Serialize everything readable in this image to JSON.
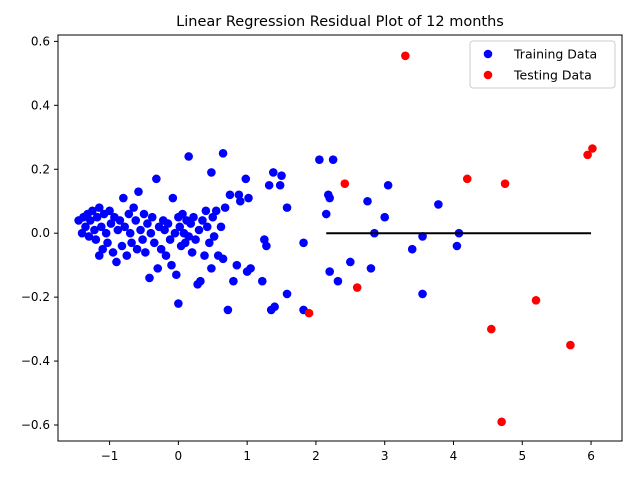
{
  "chart_data": {
    "type": "scatter",
    "title": "Linear Regression Residual Plot of 12 months",
    "xlabel": "",
    "ylabel": "",
    "xlim": [
      -1.75,
      6.45
    ],
    "ylim": [
      -0.65,
      0.62
    ],
    "x_ticks": [
      -1,
      0,
      1,
      2,
      3,
      4,
      5,
      6
    ],
    "y_ticks": [
      -0.6,
      -0.4,
      -0.2,
      0.0,
      0.2,
      0.4,
      0.6
    ],
    "x_tick_labels": [
      "−1",
      "0",
      "1",
      "2",
      "3",
      "4",
      "5",
      "6"
    ],
    "y_tick_labels": [
      "−0.6",
      "−0.4",
      "−0.2",
      "0.0",
      "0.2",
      "0.4",
      "0.6"
    ],
    "grid": false,
    "legend_position": "top-right",
    "hline": {
      "y": 0,
      "xmin": 2.15,
      "xmax": 6.0,
      "color": "#000000"
    },
    "series": [
      {
        "name": "Training Data",
        "color": "#0000ff",
        "points": [
          [
            -1.45,
            0.04
          ],
          [
            -1.4,
            0.0
          ],
          [
            -1.38,
            0.05
          ],
          [
            -1.35,
            0.02
          ],
          [
            -1.32,
            0.06
          ],
          [
            -1.3,
            -0.01
          ],
          [
            -1.28,
            0.04
          ],
          [
            -1.25,
            0.07
          ],
          [
            -1.22,
            0.01
          ],
          [
            -1.2,
            -0.02
          ],
          [
            -1.18,
            0.05
          ],
          [
            -1.15,
            0.08
          ],
          [
            -1.15,
            -0.07
          ],
          [
            -1.12,
            0.02
          ],
          [
            -1.1,
            -0.05
          ],
          [
            -1.08,
            0.06
          ],
          [
            -1.05,
            0.0
          ],
          [
            -1.03,
            -0.03
          ],
          [
            -1.0,
            0.07
          ],
          [
            -0.98,
            0.03
          ],
          [
            -0.95,
            -0.06
          ],
          [
            -0.93,
            0.05
          ],
          [
            -0.9,
            -0.09
          ],
          [
            -0.88,
            0.01
          ],
          [
            -0.85,
            0.04
          ],
          [
            -0.82,
            -0.04
          ],
          [
            -0.8,
            0.11
          ],
          [
            -0.78,
            0.02
          ],
          [
            -0.75,
            -0.07
          ],
          [
            -0.72,
            0.06
          ],
          [
            -0.7,
            0.0
          ],
          [
            -0.68,
            -0.03
          ],
          [
            -0.65,
            0.08
          ],
          [
            -0.62,
            0.04
          ],
          [
            -0.6,
            -0.05
          ],
          [
            -0.58,
            0.13
          ],
          [
            -0.55,
            0.01
          ],
          [
            -0.52,
            -0.02
          ],
          [
            -0.5,
            0.06
          ],
          [
            -0.48,
            -0.06
          ],
          [
            -0.45,
            0.03
          ],
          [
            -0.42,
            -0.14
          ],
          [
            -0.4,
            0.0
          ],
          [
            -0.38,
            0.05
          ],
          [
            -0.35,
            -0.03
          ],
          [
            -0.32,
            0.17
          ],
          [
            -0.3,
            -0.11
          ],
          [
            -0.28,
            0.02
          ],
          [
            -0.25,
            -0.05
          ],
          [
            -0.22,
            0.04
          ],
          [
            -0.2,
            0.01
          ],
          [
            -0.18,
            -0.07
          ],
          [
            -0.15,
            0.03
          ],
          [
            -0.12,
            -0.02
          ],
          [
            -0.1,
            -0.1
          ],
          [
            -0.08,
            0.11
          ],
          [
            -0.05,
            0.0
          ],
          [
            -0.03,
            -0.13
          ],
          [
            0.0,
            -0.22
          ],
          [
            0.0,
            0.05
          ],
          [
            0.02,
            0.02
          ],
          [
            0.04,
            -0.04
          ],
          [
            0.06,
            0.06
          ],
          [
            0.08,
            0.0
          ],
          [
            0.1,
            -0.03
          ],
          [
            0.12,
            0.04
          ],
          [
            0.15,
            0.24
          ],
          [
            0.15,
            -0.01
          ],
          [
            0.18,
            0.03
          ],
          [
            0.2,
            -0.06
          ],
          [
            0.22,
            0.05
          ],
          [
            0.25,
            -0.02
          ],
          [
            0.28,
            -0.16
          ],
          [
            0.3,
            0.01
          ],
          [
            0.32,
            -0.15
          ],
          [
            0.35,
            0.04
          ],
          [
            0.38,
            -0.07
          ],
          [
            0.4,
            0.07
          ],
          [
            0.42,
            0.02
          ],
          [
            0.45,
            -0.03
          ],
          [
            0.48,
            -0.11
          ],
          [
            0.48,
            0.19
          ],
          [
            0.5,
            0.05
          ],
          [
            0.52,
            -0.01
          ],
          [
            0.55,
            0.07
          ],
          [
            0.58,
            -0.07
          ],
          [
            0.62,
            0.02
          ],
          [
            0.65,
            0.25
          ],
          [
            0.65,
            -0.08
          ],
          [
            0.68,
            0.08
          ],
          [
            0.72,
            -0.24
          ],
          [
            0.75,
            0.12
          ],
          [
            0.8,
            -0.15
          ],
          [
            0.85,
            -0.1
          ],
          [
            0.88,
            0.12
          ],
          [
            0.9,
            0.1
          ],
          [
            0.98,
            0.17
          ],
          [
            1.0,
            -0.12
          ],
          [
            1.02,
            0.11
          ],
          [
            1.05,
            -0.11
          ],
          [
            1.22,
            -0.15
          ],
          [
            1.25,
            -0.02
          ],
          [
            1.28,
            -0.04
          ],
          [
            1.32,
            0.15
          ],
          [
            1.35,
            -0.24
          ],
          [
            1.38,
            0.19
          ],
          [
            1.4,
            -0.23
          ],
          [
            1.48,
            0.15
          ],
          [
            1.5,
            0.18
          ],
          [
            1.58,
            -0.19
          ],
          [
            1.58,
            0.08
          ],
          [
            1.82,
            -0.03
          ],
          [
            1.82,
            -0.24
          ],
          [
            2.05,
            0.23
          ],
          [
            2.15,
            0.06
          ],
          [
            2.18,
            0.12
          ],
          [
            2.2,
            -0.12
          ],
          [
            2.2,
            0.11
          ],
          [
            2.25,
            0.23
          ],
          [
            2.32,
            -0.15
          ],
          [
            2.5,
            -0.09
          ],
          [
            2.75,
            0.1
          ],
          [
            2.8,
            -0.11
          ],
          [
            2.85,
            0.0
          ],
          [
            3.0,
            0.05
          ],
          [
            3.05,
            0.15
          ],
          [
            3.4,
            -0.05
          ],
          [
            3.55,
            -0.01
          ],
          [
            3.55,
            -0.19
          ],
          [
            3.78,
            0.09
          ],
          [
            4.05,
            -0.04
          ],
          [
            4.08,
            0.0
          ]
        ]
      },
      {
        "name": "Testing Data",
        "color": "#ff0000",
        "points": [
          [
            3.3,
            0.555
          ],
          [
            6.02,
            0.265
          ],
          [
            5.95,
            0.245
          ],
          [
            4.2,
            0.17
          ],
          [
            4.75,
            0.155
          ],
          [
            2.42,
            0.155
          ],
          [
            2.6,
            -0.17
          ],
          [
            5.2,
            -0.21
          ],
          [
            1.9,
            -0.25
          ],
          [
            4.55,
            -0.3
          ],
          [
            5.7,
            -0.35
          ],
          [
            4.7,
            -0.59
          ]
        ]
      }
    ]
  }
}
